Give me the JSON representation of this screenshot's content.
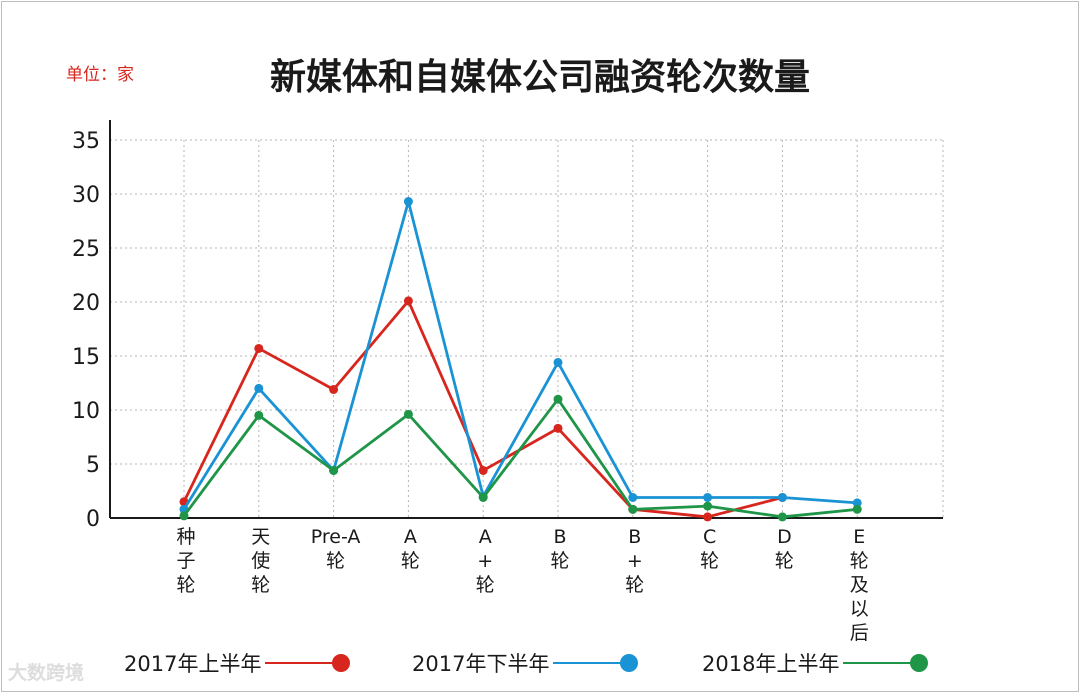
{
  "header": {
    "unit_label": "单位：家"
  },
  "chart_data": {
    "type": "line",
    "title": "新媒体和自媒体公司融资轮次数量",
    "xlabel": "",
    "ylabel": "",
    "ylim": [
      0,
      35
    ],
    "yticks": [
      0,
      5,
      10,
      15,
      20,
      25,
      30,
      35
    ],
    "grid": true,
    "legend_position": "bottom",
    "categories": [
      "种子轮",
      "天使轮",
      "Pre-A轮",
      "A轮",
      "A+轮",
      "B轮",
      "B+轮",
      "C轮",
      "D轮",
      "E轮及以后"
    ],
    "category_label_lines": [
      [
        "种",
        "子",
        "轮"
      ],
      [
        "天",
        "使",
        "轮"
      ],
      [
        "Pre-A",
        "轮"
      ],
      [
        "A",
        "轮"
      ],
      [
        "A",
        "+",
        "轮"
      ],
      [
        "B",
        "轮"
      ],
      [
        "B",
        "+",
        "轮"
      ],
      [
        "C",
        "轮"
      ],
      [
        "D",
        "轮"
      ],
      [
        "E",
        "轮",
        "及",
        "以",
        "后"
      ]
    ],
    "series": [
      {
        "name": "2017年上半年",
        "color": "#d7261e",
        "values": [
          1.5,
          15.7,
          11.9,
          20.1,
          4.4,
          8.3,
          0.8,
          0.1,
          1.9,
          null
        ]
      },
      {
        "name": "2017年下半年",
        "color": "#1a93d4",
        "values": [
          0.8,
          12.0,
          4.4,
          29.3,
          2.0,
          14.4,
          1.9,
          1.9,
          1.9,
          1.4
        ]
      },
      {
        "name": "2018年上半年",
        "color": "#1e9547",
        "values": [
          0.2,
          9.5,
          4.4,
          9.6,
          1.9,
          11.0,
          0.8,
          1.1,
          0.1,
          0.8
        ]
      }
    ]
  },
  "watermark": "大数跨境"
}
